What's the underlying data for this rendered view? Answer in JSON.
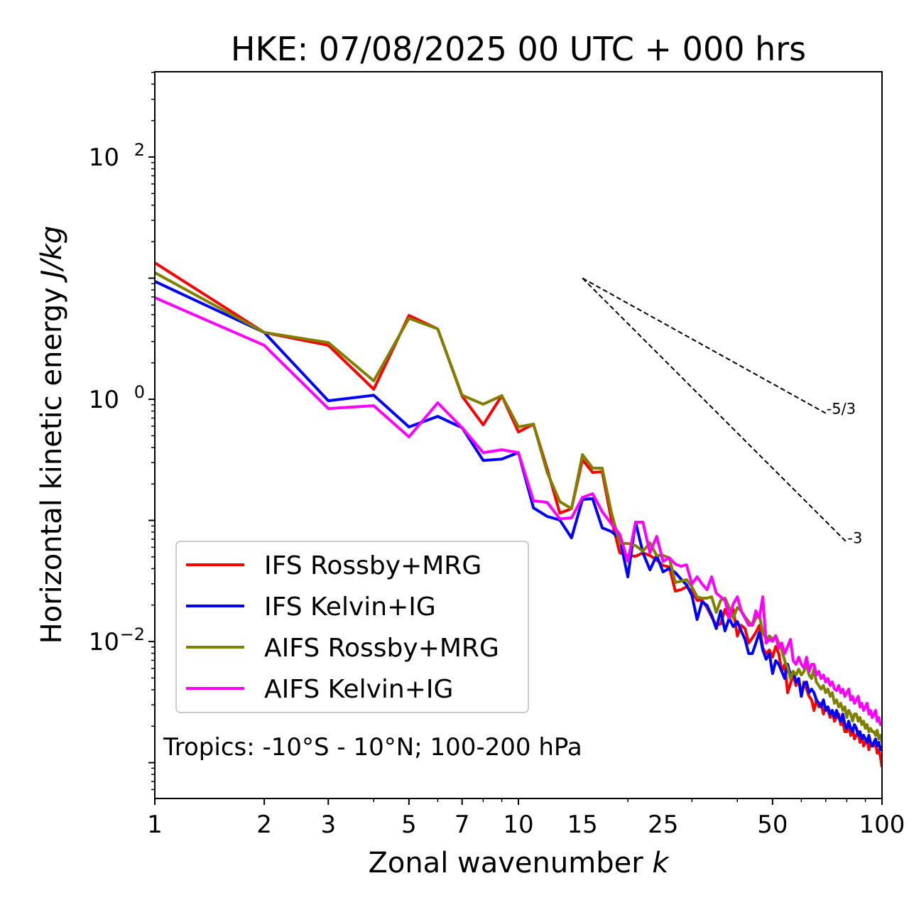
{
  "chart_data": {
    "type": "line",
    "title": "HKE: 07/08/2025 00 UTC + 000 hrs",
    "xlabel": "Zonal wavenumber ",
    "xlabel_italic": "k",
    "ylabel": "Horizontal kinetic energy ",
    "ylabel_italic": "J/kg",
    "xscale": "log",
    "yscale": "log",
    "xlim": [
      1,
      100
    ],
    "ylim": [
      0.000506,
      506
    ],
    "x_ticks": [
      1,
      2,
      3,
      5,
      7,
      10,
      15,
      25,
      50,
      100
    ],
    "x_tick_labels": [
      "1",
      "2",
      "3",
      "5",
      "7",
      "10",
      "15",
      "25",
      "50",
      "100"
    ],
    "y_ticks": [
      0.01,
      1,
      100
    ],
    "y_tick_labels": [
      {
        "base": "10",
        "exp": "−2"
      },
      {
        "base": "10",
        "exp": "0"
      },
      {
        "base": "10",
        "exp": "2"
      }
    ],
    "grid": false,
    "legend_position": "lower-left",
    "annotation": "Tropics: -10°S - 10°N; 100-200 hPa",
    "reference_slopes": [
      {
        "label": "-5/3",
        "slope": -1.6667,
        "k_start": 15,
        "k_end": 70,
        "e_start": 10
      },
      {
        "label": "-3",
        "slope": -3,
        "k_start": 15,
        "k_end": 80,
        "e_start": 10
      }
    ],
    "x": [
      1,
      2,
      3,
      4,
      5,
      6,
      7,
      8,
      9,
      10,
      11,
      12,
      13,
      14,
      15,
      16,
      17,
      18,
      19,
      20,
      21,
      22,
      23,
      24,
      25,
      26,
      27,
      28,
      29,
      30,
      31,
      32,
      33,
      34,
      35,
      36,
      37,
      38,
      39,
      40,
      41,
      42,
      43,
      44,
      45,
      46,
      47,
      48,
      49,
      50,
      51,
      52,
      53,
      54,
      55,
      56,
      57,
      58,
      59,
      60,
      61,
      62,
      63,
      64,
      65,
      66,
      67,
      68,
      69,
      70,
      71,
      72,
      73,
      74,
      75,
      76,
      77,
      78,
      79,
      80,
      81,
      82,
      83,
      84,
      85,
      86,
      87,
      88,
      89,
      90,
      91,
      92,
      93,
      94,
      95,
      96,
      97,
      98,
      99,
      100
    ],
    "series": [
      {
        "name": "IFS Rossby+MRG",
        "color": "#ff0000",
        "values": [
          13.4,
          3.56,
          2.79,
          1.21,
          4.92,
          3.81,
          1.06,
          0.615,
          1.07,
          0.537,
          0.624,
          0.266,
          0.115,
          0.125,
          0.317,
          0.249,
          0.252,
          0.103,
          0.054,
          0.0513,
          0.0506,
          0.054,
          0.0513,
          0.0472,
          0.0424,
          0.0413,
          0.0261,
          0.0268,
          0.0283,
          0.0261,
          0.0219,
          0.0219,
          0.0191,
          0.016,
          0.0136,
          0.014,
          0.0184,
          0.0156,
          0.0184,
          0.0111,
          0.0136,
          0.0128,
          0.00973,
          0.0107,
          0.0119,
          0.0136,
          0.00885,
          0.00795,
          0.00851,
          0.00743,
          0.0091,
          0.00795,
          0.00567,
          0.00649,
          0.00378,
          0.00451,
          0.0053,
          0.00433,
          0.00495,
          0.00353,
          0.00463,
          0.00405,
          0.00353,
          0.0033,
          0.0027,
          0.0033,
          0.00289,
          0.00309,
          0.00252,
          0.00289,
          0.0027,
          0.00236,
          0.0027,
          0.0022,
          0.00236,
          0.00252,
          0.00206,
          0.0022,
          0.0018,
          0.0018,
          0.00206,
          0.00168,
          0.00192,
          0.00157,
          0.00168,
          0.0018,
          0.00147,
          0.00168,
          0.00137,
          0.00147,
          0.00157,
          0.00128,
          0.00147,
          0.00137,
          0.00137,
          0.00147,
          0.0012,
          0.00128,
          0.00112,
          0.000916
        ]
      },
      {
        "name": "IFS Kelvin+IG",
        "color": "#0000ff",
        "values": [
          9.41,
          3.56,
          0.973,
          1.08,
          0.591,
          0.723,
          0.582,
          0.313,
          0.321,
          0.363,
          0.127,
          0.108,
          0.1007,
          0.0718,
          0.149,
          0.151,
          0.0868,
          0.0811,
          0.0709,
          0.0342,
          0.0967,
          0.0541,
          0.0391,
          0.0513,
          0.0376,
          0.0402,
          0.0371,
          0.0328,
          0.0294,
          0.0241,
          0.0152,
          0.0213,
          0.0199,
          0.0165,
          0.0128,
          0.0179,
          0.01225,
          0.0156,
          0.01328,
          0.0146,
          0.01225,
          0.01042,
          0.00795,
          0.00795,
          0.00973,
          0.01191,
          0.00851,
          0.00714,
          0.00795,
          0.00544,
          0.00695,
          0.00649,
          0.00567,
          0.00495,
          0.00649,
          0.0053,
          0.00567,
          0.00463,
          0.00495,
          0.00353,
          0.00451,
          0.00463,
          0.00378,
          0.00405,
          0.00378,
          0.0033,
          0.00309,
          0.00289,
          0.0033,
          0.0027,
          0.00289,
          0.00252,
          0.0027,
          0.00236,
          0.0027,
          0.00236,
          0.0022,
          0.00252,
          0.00206,
          0.00192,
          0.0022,
          0.00192,
          0.0018,
          0.00206,
          0.00192,
          0.00168,
          0.0018,
          0.00157,
          0.00168,
          0.00157,
          0.00147,
          0.00168,
          0.00147,
          0.00137,
          0.00147,
          0.00157,
          0.00137,
          0.00147,
          0.00128,
          0.00137
        ]
      },
      {
        "name": "AIFS Rossby+MRG",
        "color": "#808000",
        "values": [
          11.1,
          3.56,
          2.94,
          1.42,
          4.66,
          3.81,
          1.08,
          0.91,
          1.07,
          0.591,
          0.624,
          0.249,
          0.143,
          0.125,
          0.349,
          0.27,
          0.27,
          0.118,
          0.0645,
          0.0645,
          0.0619,
          0.0556,
          0.0653,
          0.0513,
          0.0513,
          0.0492,
          0.0307,
          0.0315,
          0.0324,
          0.0283,
          0.0234,
          0.0228,
          0.0228,
          0.0234,
          0.0174,
          0.0219,
          0.0228,
          0.0191,
          0.0156,
          0.0191,
          0.0179,
          0.016,
          0.0146,
          0.01364,
          0.0156,
          0.0165,
          0.01191,
          0.01042,
          0.01114,
          0.01042,
          0.01114,
          0.00973,
          0.00851,
          0.00695,
          0.00607,
          0.00495,
          0.00567,
          0.0053,
          0.00591,
          0.0053,
          0.00567,
          0.00649,
          0.0053,
          0.00495,
          0.00591,
          0.00463,
          0.00433,
          0.00405,
          0.00433,
          0.00378,
          0.00405,
          0.00353,
          0.00378,
          0.00309,
          0.0033,
          0.00289,
          0.00309,
          0.0027,
          0.00289,
          0.00236,
          0.0027,
          0.00252,
          0.0022,
          0.00252,
          0.00252,
          0.0022,
          0.00236,
          0.00206,
          0.0022,
          0.00192,
          0.00206,
          0.0018,
          0.00192,
          0.0018,
          0.0018,
          0.00168,
          0.00185,
          0.00157,
          0.00168,
          0.00147
        ]
      },
      {
        "name": "AIFS Kelvin+IG",
        "color": "#ff00ff",
        "values": [
          6.9,
          2.79,
          0.839,
          0.885,
          0.489,
          0.935,
          0.582,
          0.363,
          0.383,
          0.363,
          0.145,
          0.141,
          0.103,
          0.105,
          0.155,
          0.166,
          0.118,
          0.0941,
          0.0768,
          0.046,
          0.0967,
          0.0967,
          0.0541,
          0.0738,
          0.046,
          0.0492,
          0.0436,
          0.0418,
          0.043,
          0.0299,
          0.0342,
          0.0299,
          0.0268,
          0.0342,
          0.0251,
          0.0234,
          0.0219,
          0.0156,
          0.0205,
          0.0234,
          0.0179,
          0.0156,
          0.01364,
          0.01364,
          0.0179,
          0.0156,
          0.0234,
          0.00973,
          0.01042,
          0.01003,
          0.01114,
          0.00885,
          0.00973,
          0.00795,
          0.0091,
          0.01042,
          0.00695,
          0.00649,
          0.00743,
          0.00649,
          0.00607,
          0.00743,
          0.00567,
          0.00649,
          0.00649,
          0.0053,
          0.00567,
          0.00495,
          0.0053,
          0.00463,
          0.00495,
          0.00433,
          0.00463,
          0.00405,
          0.00394,
          0.00433,
          0.00378,
          0.00405,
          0.00353,
          0.00378,
          0.00405,
          0.0033,
          0.00353,
          0.00309,
          0.0033,
          0.00353,
          0.00289,
          0.00309,
          0.0027,
          0.00289,
          0.00309,
          0.00252,
          0.0027,
          0.00236,
          0.00252,
          0.0027,
          0.0022,
          0.00236,
          0.00206,
          0.00206
        ]
      }
    ]
  }
}
